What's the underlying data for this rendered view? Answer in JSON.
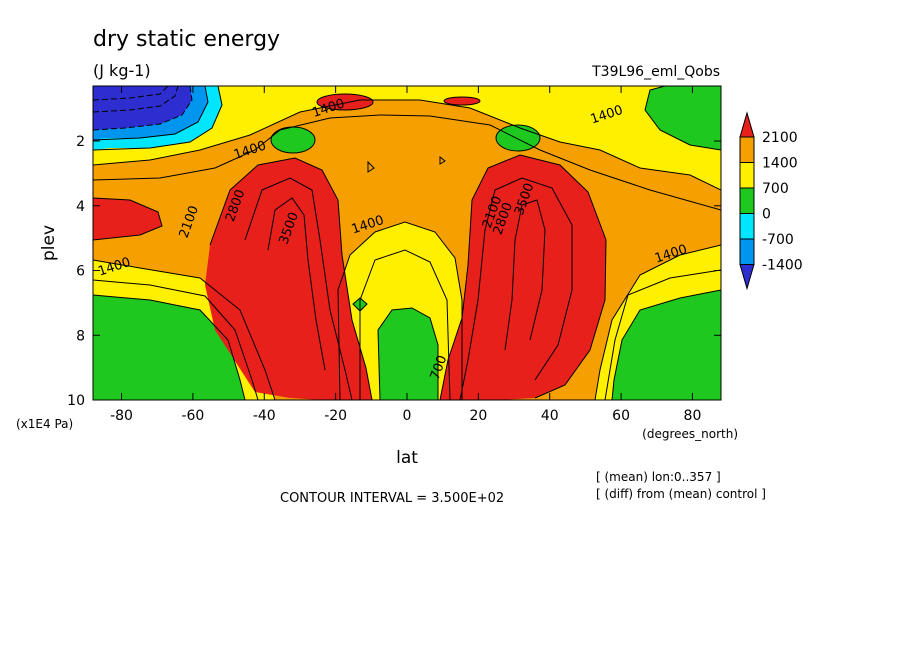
{
  "chart_data": {
    "type": "heatmap",
    "title": "dry static energy",
    "units": "(J kg-1)",
    "experiment": "T39L96_eml_Qobs",
    "xlabel": "lat",
    "x_units": "(degrees_north)",
    "ylabel": "plev",
    "y_units": "(x1E4 Pa)",
    "xlim": [
      -88,
      88
    ],
    "ylim": [
      10,
      0.3
    ],
    "y_inverted": true,
    "x_ticks": [
      -80,
      -60,
      -40,
      -20,
      0,
      20,
      40,
      60,
      80
    ],
    "x_tick_labels": [
      "-80",
      "-60",
      "-40",
      "-20",
      "0",
      "20",
      "40",
      "60",
      "80"
    ],
    "y_ticks": [
      2,
      4,
      6,
      8,
      10
    ],
    "y_tick_labels": [
      "2",
      "4",
      "6",
      "8",
      "10"
    ],
    "contour_interval_text": "CONTOUR INTERVAL = 3.500E+02",
    "notes": [
      "[ (mean) lon:0..357 ]",
      "[ (diff) from (mean) control ]"
    ],
    "contour_labels": [
      {
        "text": "1400",
        "lat": -22,
        "plev": 1.0
      },
      {
        "text": "1400",
        "lat": -44,
        "plev": 2.3
      },
      {
        "text": "1400",
        "lat": 56,
        "plev": 1.2
      },
      {
        "text": "1400",
        "lat": -82,
        "plev": 5.9
      },
      {
        "text": "1400",
        "lat": 74,
        "plev": 5.5
      },
      {
        "text": "1400",
        "lat": -11,
        "plev": 4.6
      },
      {
        "text": "2100",
        "lat": -61,
        "plev": 4.5
      },
      {
        "text": "2100",
        "lat": 24,
        "plev": 4.2
      },
      {
        "text": "2800",
        "lat": -48,
        "plev": 4.0
      },
      {
        "text": "2800",
        "lat": 27,
        "plev": 4.4
      },
      {
        "text": "3500",
        "lat": -33,
        "plev": 4.7
      },
      {
        "text": "3500",
        "lat": 33,
        "plev": 3.8
      },
      {
        "text": "700",
        "lat": 9,
        "plev": 9.0
      }
    ],
    "colorbar": {
      "boundaries": [
        "2100",
        "1400",
        "700",
        "0",
        "-700",
        "-1400"
      ],
      "colors": [
        "#e8201c",
        "#f5a000",
        "#fff000",
        "#1ec81e",
        "#00e6ff",
        "#0096f0",
        "#2d2dd0"
      ],
      "extend": "both"
    }
  }
}
